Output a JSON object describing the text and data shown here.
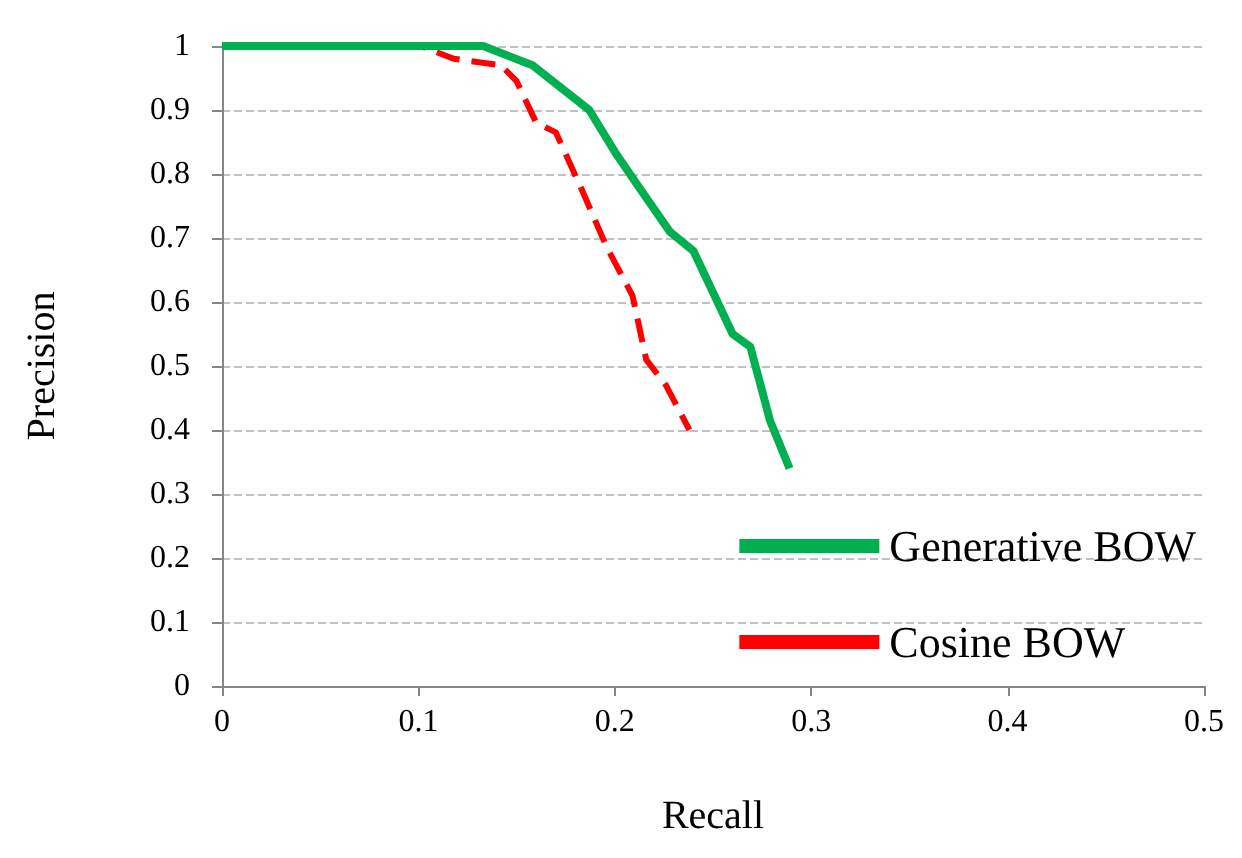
{
  "chart_data": {
    "type": "line",
    "xlabel": "Recall",
    "ylabel": "Precision",
    "xlim": [
      0,
      0.5
    ],
    "xticks": [
      0,
      0.1,
      0.2,
      0.3,
      0.4,
      0.5
    ],
    "ylim": [
      0,
      1
    ],
    "yticks": [
      0,
      0.1,
      0.2,
      0.3,
      0.4,
      0.5,
      0.6,
      0.7,
      0.8,
      0.9,
      1
    ],
    "grid": "y",
    "legend": "bottom right",
    "marker": "none",
    "series": [
      {
        "name": "Generative BOW",
        "color": "#00b050",
        "line_style": "solid",
        "x": [
          0,
          0.133,
          0.158,
          0.187,
          0.201,
          0.211,
          0.228,
          0.24,
          0.26,
          0.269,
          0.279,
          0.289
        ],
        "values": [
          1,
          1,
          0.97,
          0.9,
          0.83,
          0.785,
          0.71,
          0.68,
          0.55,
          0.53,
          0.415,
          0.34
        ]
      },
      {
        "name": "Cosine BOW",
        "color": "#ff0000",
        "line_style": "dashed",
        "x": [
          0,
          0.101,
          0.118,
          0.142,
          0.15,
          0.16,
          0.17,
          0.184,
          0.196,
          0.209,
          0.216,
          0.226,
          0.238
        ],
        "values": [
          1,
          1,
          0.98,
          0.97,
          0.945,
          0.88,
          0.865,
          0.77,
          0.685,
          0.61,
          0.51,
          0.47,
          0.4
        ]
      }
    ]
  }
}
